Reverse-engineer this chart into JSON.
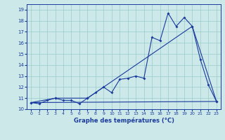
{
  "title": "Graphe des températures (°C)",
  "background_color": "#cce8e8",
  "grid_color": "#99cccc",
  "line_color": "#1a3a9e",
  "xlim": [
    -0.5,
    23.5
  ],
  "ylim": [
    10,
    19.5
  ],
  "xticks": [
    0,
    1,
    2,
    3,
    4,
    5,
    6,
    7,
    8,
    9,
    10,
    11,
    12,
    13,
    14,
    15,
    16,
    17,
    18,
    19,
    20,
    21,
    22,
    23
  ],
  "yticks": [
    10,
    11,
    12,
    13,
    14,
    15,
    16,
    17,
    18,
    19
  ],
  "line1_x": [
    0,
    1,
    2,
    3,
    4,
    5,
    6,
    7,
    8,
    9,
    10,
    11,
    12,
    13,
    14,
    15,
    16,
    17,
    18,
    19,
    20,
    21,
    22,
    23
  ],
  "line1_y": [
    10.6,
    10.5,
    10.8,
    11.0,
    10.8,
    10.8,
    10.5,
    11.0,
    11.5,
    12.0,
    11.5,
    12.7,
    12.8,
    13.0,
    12.8,
    16.5,
    16.2,
    18.7,
    17.5,
    18.3,
    17.5,
    14.5,
    12.2,
    10.7
  ],
  "line2_x": [
    0,
    3,
    7,
    20,
    23
  ],
  "line2_y": [
    10.6,
    11.0,
    11.0,
    17.5,
    10.7
  ],
  "line3_x": [
    0,
    23
  ],
  "line3_y": [
    10.6,
    10.7
  ],
  "figsize": [
    3.2,
    2.0
  ],
  "dpi": 100
}
